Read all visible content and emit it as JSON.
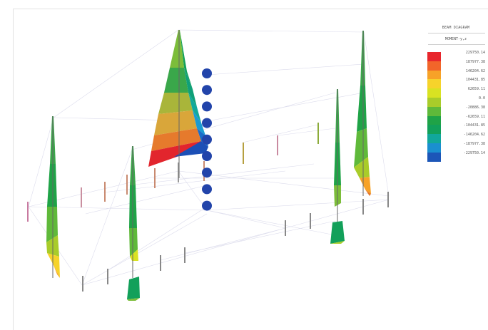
{
  "legend": {
    "title": "BEAM DIAGRAM",
    "subtitle": "MOMENT-y,z",
    "rows": [
      {
        "label": "229750.14",
        "color": "#e8262c"
      },
      {
        "label": "187977.38",
        "color": "#f2652a"
      },
      {
        "label": "146204.62",
        "color": "#f7a228"
      },
      {
        "label": "104431.85",
        "color": "#f6d32b"
      },
      {
        "label": "62659.11",
        "color": "#d9e222"
      },
      {
        "label": "0.0",
        "color": "#a9cc2a"
      },
      {
        "label": "-20886.38",
        "color": "#5fb93a"
      },
      {
        "label": "-62659.11",
        "color": "#1fa347"
      },
      {
        "label": "-104431.85",
        "color": "#12a05a"
      },
      {
        "label": "-146204.62",
        "color": "#11a79b"
      },
      {
        "label": "-187977.38",
        "color": "#1a8fd0"
      },
      {
        "label": "-229750.14",
        "color": "#1c56b8"
      }
    ]
  },
  "supports": {
    "color": "#2244aa",
    "count": 9
  }
}
